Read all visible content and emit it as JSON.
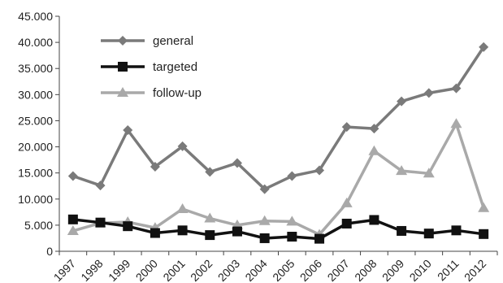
{
  "chart_data": {
    "type": "line",
    "title": "",
    "xlabel": "",
    "ylabel": "",
    "categories": [
      "1997",
      "1998",
      "1999",
      "2000",
      "2001",
      "2002",
      "2003",
      "2004",
      "2005",
      "2006",
      "2007",
      "2008",
      "2009",
      "2010",
      "2011",
      "2012"
    ],
    "ylim": [
      0,
      45000
    ],
    "yticks": [
      0,
      5000,
      10000,
      15000,
      20000,
      25000,
      30000,
      35000,
      40000,
      45000
    ],
    "ytick_labels": [
      "0",
      "5.000",
      "10.000",
      "15.000",
      "20.000",
      "25.000",
      "30.000",
      "35.000",
      "40.000",
      "45.000"
    ],
    "grid": false,
    "legend_position": "top-left",
    "series": [
      {
        "name": "general",
        "marker": "diamond",
        "color": "#7a7a7a",
        "values": [
          14400,
          12600,
          23200,
          16200,
          20100,
          15200,
          16900,
          11900,
          14400,
          15500,
          23800,
          23500,
          28700,
          30300,
          31200,
          39100
        ]
      },
      {
        "name": "targeted",
        "marker": "square",
        "color": "#111111",
        "values": [
          6100,
          5500,
          4800,
          3500,
          4000,
          3100,
          3800,
          2500,
          2800,
          2400,
          5300,
          6000,
          3900,
          3400,
          4000,
          3300
        ]
      },
      {
        "name": "follow-up",
        "marker": "triangle",
        "color": "#a9a9a9",
        "values": [
          3900,
          5400,
          5600,
          4500,
          8100,
          6300,
          5000,
          5800,
          5700,
          3200,
          9200,
          19200,
          15400,
          14900,
          24400,
          8300
        ]
      }
    ]
  }
}
